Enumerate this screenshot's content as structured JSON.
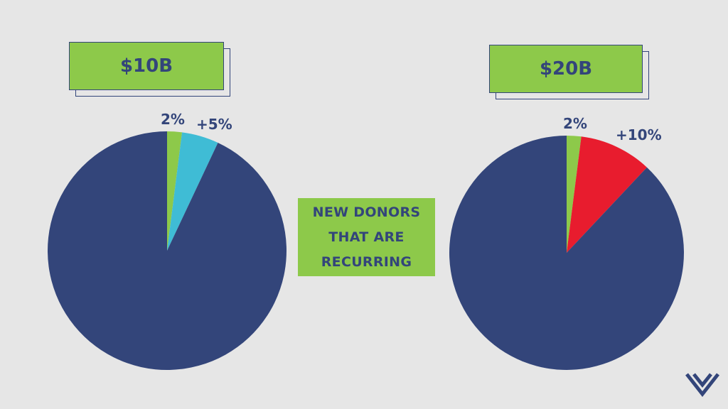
{
  "center_label": {
    "lines": [
      "NEW DONORS",
      "THAT ARE",
      "RECURRING"
    ]
  },
  "colors": {
    "background": "#e6e6e6",
    "badge_green": "#8dc94a",
    "navy": "#33457a",
    "green_slice": "#8dc94a",
    "cyan_slice": "#3fbcd5",
    "red_slice": "#e81c2e"
  },
  "chart_data": [
    {
      "type": "pie",
      "title": "$10B",
      "slices": [
        {
          "label": "2%",
          "value": 2,
          "color": "#8dc94a"
        },
        {
          "label": "+5%",
          "value": 5,
          "color": "#3fbcd5"
        },
        {
          "label": "",
          "value": 93,
          "color": "#33457a"
        }
      ]
    },
    {
      "type": "pie",
      "title": "$20B",
      "slices": [
        {
          "label": "2%",
          "value": 2,
          "color": "#8dc94a"
        },
        {
          "label": "+10%",
          "value": 10,
          "color": "#e81c2e"
        },
        {
          "label": "",
          "value": 88,
          "color": "#33457a"
        }
      ]
    }
  ],
  "logo": {
    "icon": "heart-chevron-logo-icon"
  }
}
